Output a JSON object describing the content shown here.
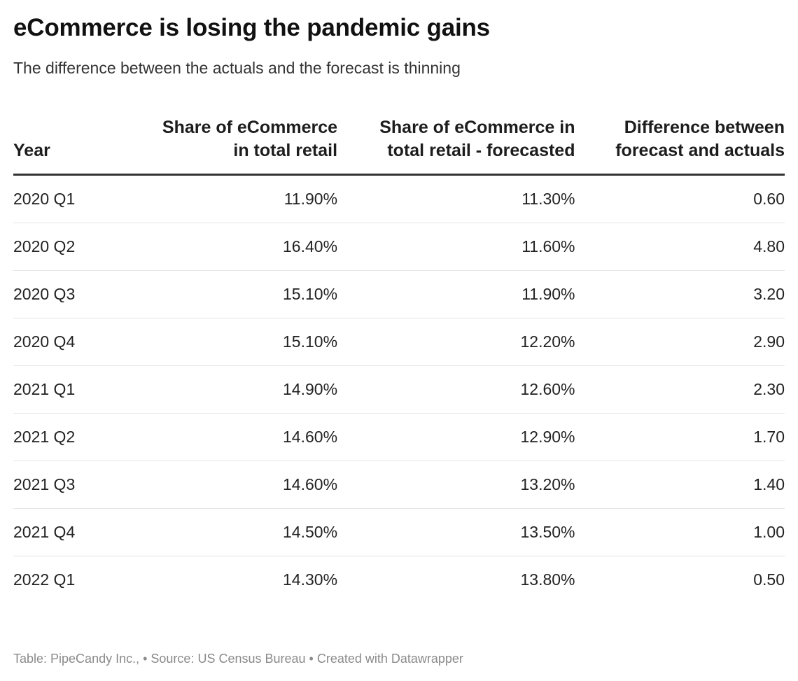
{
  "chart_data": {
    "type": "table",
    "title": "eCommerce is losing the pandemic gains",
    "subtitle": "The difference between the actuals and the forecast is thinning",
    "columns": [
      "Year",
      "Share of eCommerce in total retail",
      "Share of eCommerce in total retail - forecasted",
      "Difference between forecast and actuals"
    ],
    "rows": [
      [
        "2020 Q1",
        "11.90%",
        "11.30%",
        "0.60"
      ],
      [
        "2020 Q2",
        "16.40%",
        "11.60%",
        "4.80"
      ],
      [
        "2020 Q3",
        "15.10%",
        "11.90%",
        "3.20"
      ],
      [
        "2020 Q4",
        "15.10%",
        "12.20%",
        "2.90"
      ],
      [
        "2021 Q1",
        "14.90%",
        "12.60%",
        "2.30"
      ],
      [
        "2021 Q2",
        "14.60%",
        "12.90%",
        "1.70"
      ],
      [
        "2021 Q3",
        "14.60%",
        "13.20%",
        "1.40"
      ],
      [
        "2021 Q4",
        "14.50%",
        "13.50%",
        "1.00"
      ],
      [
        "2022 Q1",
        "14.30%",
        "13.80%",
        "0.50"
      ]
    ],
    "footer": "Table: PipeCandy Inc., • Source: US Census Bureau • Created with Datawrapper"
  }
}
